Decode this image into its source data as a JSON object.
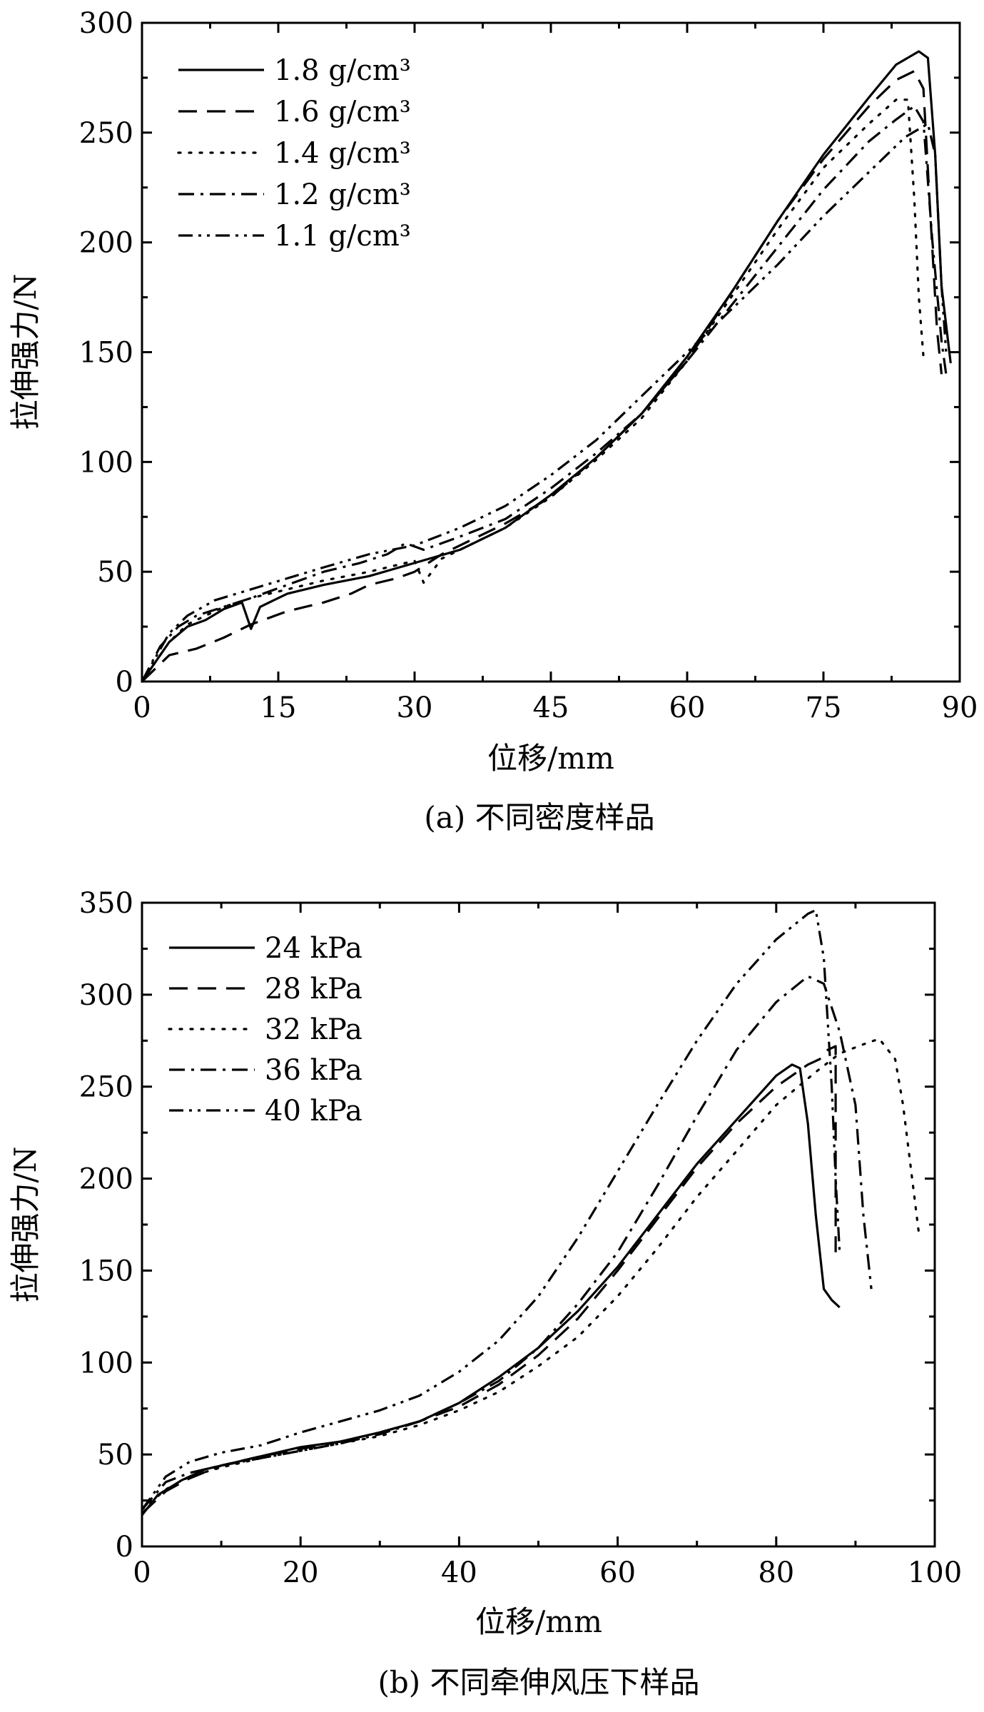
{
  "chart_data": [
    {
      "type": "line",
      "caption": "(a) 不同密度样品",
      "xlabel": "位移/mm",
      "ylabel": "拉伸强力/N",
      "xlim": [
        0,
        90
      ],
      "ylim": [
        0,
        300
      ],
      "xticks": [
        "0",
        "15",
        "30",
        "45",
        "60",
        "75",
        "90"
      ],
      "yticks": [
        "0",
        "50",
        "100",
        "150",
        "200",
        "250",
        "300"
      ],
      "legend": {
        "position": "top-left"
      },
      "series": [
        {
          "name": "1.8 g/cm³",
          "style": "solid",
          "points": [
            [
              0,
              0
            ],
            [
              3,
              18
            ],
            [
              5,
              25
            ],
            [
              7,
              28
            ],
            [
              9,
              33
            ],
            [
              11,
              36
            ],
            [
              12,
              24
            ],
            [
              13,
              34
            ],
            [
              16,
              40
            ],
            [
              20,
              44
            ],
            [
              25,
              48
            ],
            [
              30,
              54
            ],
            [
              35,
              60
            ],
            [
              40,
              70
            ],
            [
              45,
              85
            ],
            [
              50,
              102
            ],
            [
              55,
              122
            ],
            [
              60,
              148
            ],
            [
              65,
              178
            ],
            [
              70,
              210
            ],
            [
              75,
              240
            ],
            [
              80,
              266
            ],
            [
              83,
              281
            ],
            [
              85.5,
              287
            ],
            [
              86.5,
              284
            ],
            [
              87.3,
              240
            ],
            [
              88,
              180
            ],
            [
              89,
              145
            ]
          ]
        },
        {
          "name": "1.6 g/cm³",
          "style": "dash",
          "points": [
            [
              0,
              0
            ],
            [
              3,
              12
            ],
            [
              6,
              15
            ],
            [
              9,
              20
            ],
            [
              12,
              26
            ],
            [
              16,
              32
            ],
            [
              20,
              36
            ],
            [
              23,
              40
            ],
            [
              25,
              44
            ],
            [
              28,
              47
            ],
            [
              30,
              50
            ],
            [
              33,
              58
            ],
            [
              36,
              64
            ],
            [
              40,
              72
            ],
            [
              45,
              84
            ],
            [
              50,
              102
            ],
            [
              55,
              122
            ],
            [
              60,
              146
            ],
            [
              65,
              178
            ],
            [
              70,
              210
            ],
            [
              75,
              238
            ],
            [
              80,
              262
            ],
            [
              83,
              274
            ],
            [
              85,
              278
            ],
            [
              86,
              270
            ],
            [
              86.8,
              210
            ],
            [
              87.5,
              160
            ],
            [
              88,
              140
            ]
          ]
        },
        {
          "name": "1.4 g/cm³",
          "style": "dot",
          "points": [
            [
              0,
              0
            ],
            [
              3,
              18
            ],
            [
              5,
              26
            ],
            [
              7,
              30
            ],
            [
              9,
              34
            ],
            [
              12,
              38
            ],
            [
              15,
              41
            ],
            [
              20,
              46
            ],
            [
              25,
              50
            ],
            [
              30,
              55
            ],
            [
              31,
              45
            ],
            [
              33,
              56
            ],
            [
              36,
              62
            ],
            [
              40,
              70
            ],
            [
              45,
              84
            ],
            [
              50,
              101
            ],
            [
              55,
              120
            ],
            [
              60,
              146
            ],
            [
              65,
              176
            ],
            [
              70,
              206
            ],
            [
              75,
              234
            ],
            [
              80,
              254
            ],
            [
              83,
              265
            ],
            [
              84.3,
              265
            ],
            [
              85,
              220
            ],
            [
              85.5,
              175
            ],
            [
              86,
              148
            ]
          ]
        },
        {
          "name": "1.2 g/cm³",
          "style": "dashdot",
          "points": [
            [
              0,
              0
            ],
            [
              2,
              16
            ],
            [
              4,
              25
            ],
            [
              6,
              30
            ],
            [
              9,
              34
            ],
            [
              12,
              38
            ],
            [
              16,
              44
            ],
            [
              20,
              50
            ],
            [
              24,
              54
            ],
            [
              27,
              58
            ],
            [
              29,
              63
            ],
            [
              31,
              60
            ],
            [
              35,
              66
            ],
            [
              40,
              74
            ],
            [
              45,
              88
            ],
            [
              50,
              104
            ],
            [
              55,
              122
            ],
            [
              60,
              146
            ],
            [
              65,
              172
            ],
            [
              70,
              198
            ],
            [
              75,
              224
            ],
            [
              80,
              246
            ],
            [
              83,
              256
            ],
            [
              85,
              262
            ],
            [
              86,
              255
            ],
            [
              87,
              200
            ],
            [
              88,
              155
            ],
            [
              88.5,
              140
            ]
          ]
        },
        {
          "name": "1.1 g/cm³",
          "style": "dashdotdot",
          "points": [
            [
              0,
              0
            ],
            [
              3,
              22
            ],
            [
              5,
              30
            ],
            [
              8,
              37
            ],
            [
              12,
              42
            ],
            [
              16,
              47
            ],
            [
              20,
              52
            ],
            [
              25,
              58
            ],
            [
              30,
              62
            ],
            [
              35,
              70
            ],
            [
              40,
              80
            ],
            [
              45,
              94
            ],
            [
              50,
              110
            ],
            [
              55,
              130
            ],
            [
              60,
              150
            ],
            [
              65,
              170
            ],
            [
              70,
              190
            ],
            [
              75,
              212
            ],
            [
              80,
              232
            ],
            [
              84,
              248
            ],
            [
              86.5,
              254
            ],
            [
              87.3,
              240
            ],
            [
              88,
              180
            ],
            [
              88.5,
              150
            ]
          ]
        }
      ]
    },
    {
      "type": "line",
      "caption": "(b) 不同牵伸风压下样品",
      "xlabel": "位移/mm",
      "ylabel": "拉伸强力/N",
      "xlim": [
        0,
        100
      ],
      "ylim": [
        0,
        350
      ],
      "xticks": [
        "0",
        "20",
        "40",
        "60",
        "80",
        "100"
      ],
      "yticks": [
        "0",
        "50",
        "100",
        "150",
        "200",
        "250",
        "300",
        "350"
      ],
      "legend": {
        "position": "top-left"
      },
      "series": [
        {
          "name": "24 kPa",
          "style": "solid",
          "points": [
            [
              0,
              17
            ],
            [
              2,
              28
            ],
            [
              5,
              36
            ],
            [
              8,
              42
            ],
            [
              12,
              46
            ],
            [
              16,
              50
            ],
            [
              20,
              54
            ],
            [
              25,
              57
            ],
            [
              30,
              62
            ],
            [
              35,
              68
            ],
            [
              40,
              78
            ],
            [
              45,
              92
            ],
            [
              50,
              108
            ],
            [
              55,
              128
            ],
            [
              60,
              152
            ],
            [
              65,
              180
            ],
            [
              70,
              208
            ],
            [
              75,
              232
            ],
            [
              80,
              256
            ],
            [
              82,
              262
            ],
            [
              83,
              260
            ],
            [
              84,
              230
            ],
            [
              85,
              180
            ],
            [
              86,
              140
            ],
            [
              87,
              134
            ],
            [
              88,
              130
            ]
          ]
        },
        {
          "name": "28 kPa",
          "style": "dash",
          "points": [
            [
              0,
              18
            ],
            [
              3,
              30
            ],
            [
              6,
              37
            ],
            [
              10,
              44
            ],
            [
              15,
              49
            ],
            [
              20,
              53
            ],
            [
              25,
              57
            ],
            [
              30,
              62
            ],
            [
              35,
              68
            ],
            [
              40,
              76
            ],
            [
              45,
              88
            ],
            [
              50,
              104
            ],
            [
              55,
              124
            ],
            [
              60,
              150
            ],
            [
              65,
              178
            ],
            [
              70,
              206
            ],
            [
              75,
              230
            ],
            [
              80,
              250
            ],
            [
              84,
              262
            ],
            [
              85.5,
              265
            ],
            [
              86.5,
              270
            ],
            [
              87.5,
              272
            ],
            [
              87.5,
              160
            ]
          ]
        },
        {
          "name": "32 kPa",
          "style": "dot",
          "points": [
            [
              0,
              20
            ],
            [
              3,
              31
            ],
            [
              6,
              38
            ],
            [
              10,
              43
            ],
            [
              15,
              48
            ],
            [
              20,
              52
            ],
            [
              25,
              56
            ],
            [
              30,
              60
            ],
            [
              35,
              66
            ],
            [
              40,
              74
            ],
            [
              45,
              84
            ],
            [
              50,
              98
            ],
            [
              55,
              114
            ],
            [
              60,
              136
            ],
            [
              65,
              162
            ],
            [
              70,
              190
            ],
            [
              75,
              215
            ],
            [
              80,
              240
            ],
            [
              85,
              258
            ],
            [
              88,
              268
            ],
            [
              91,
              273
            ],
            [
              93,
              276
            ],
            [
              95,
              265
            ],
            [
              96,
              240
            ],
            [
              97,
              205
            ],
            [
              98,
              170
            ]
          ]
        },
        {
          "name": "36 kPa",
          "style": "dashdot",
          "points": [
            [
              0,
              20
            ],
            [
              3,
              35
            ],
            [
              6,
              40
            ],
            [
              10,
              44
            ],
            [
              15,
              48
            ],
            [
              20,
              52
            ],
            [
              25,
              56
            ],
            [
              30,
              61
            ],
            [
              35,
              68
            ],
            [
              40,
              78
            ],
            [
              45,
              90
            ],
            [
              50,
              108
            ],
            [
              55,
              132
            ],
            [
              60,
              160
            ],
            [
              65,
              196
            ],
            [
              70,
              234
            ],
            [
              75,
              270
            ],
            [
              80,
              296
            ],
            [
              84,
              310
            ],
            [
              86,
              306
            ],
            [
              88,
              280
            ],
            [
              90,
              240
            ],
            [
              91,
              180
            ],
            [
              92,
              140
            ]
          ]
        },
        {
          "name": "40 kPa",
          "style": "dashdotdot",
          "points": [
            [
              0,
              20
            ],
            [
              3,
              38
            ],
            [
              6,
              46
            ],
            [
              10,
              51
            ],
            [
              15,
              55
            ],
            [
              20,
              62
            ],
            [
              25,
              68
            ],
            [
              30,
              74
            ],
            [
              35,
              82
            ],
            [
              40,
              95
            ],
            [
              45,
              112
            ],
            [
              50,
              136
            ],
            [
              55,
              168
            ],
            [
              60,
              204
            ],
            [
              65,
              240
            ],
            [
              70,
              275
            ],
            [
              75,
              306
            ],
            [
              80,
              330
            ],
            [
              84,
              344
            ],
            [
              85,
              346
            ],
            [
              86,
              320
            ],
            [
              87,
              250
            ],
            [
              87.5,
              200
            ],
            [
              88,
              160
            ]
          ]
        }
      ]
    }
  ]
}
